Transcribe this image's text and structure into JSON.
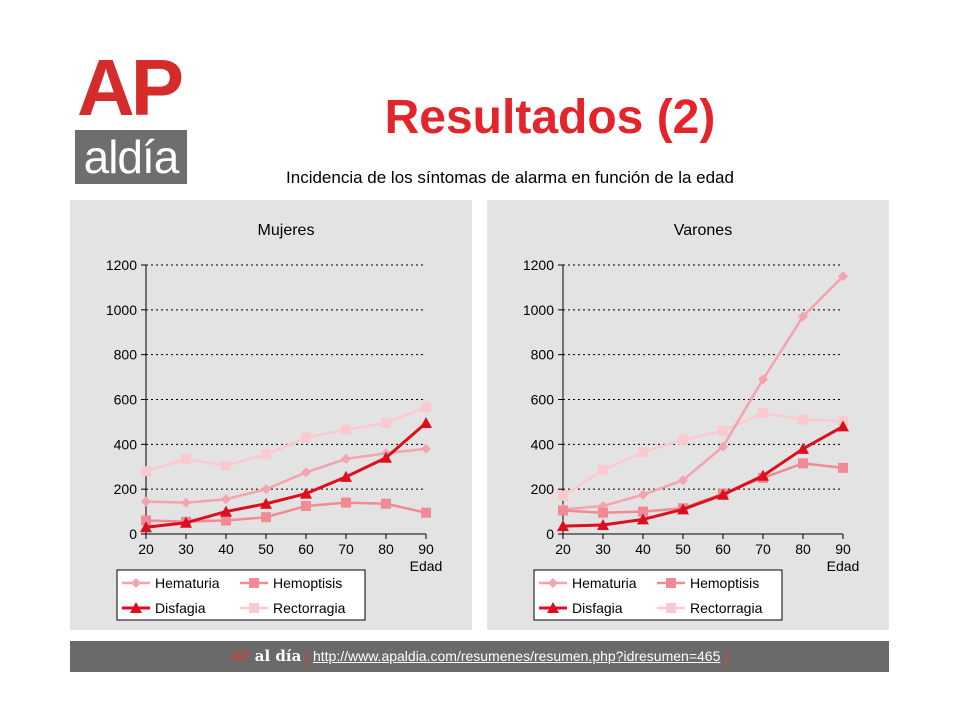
{
  "header": {
    "title": "Resultados (2)",
    "subtitle": "Incidencia de los síntomas de alarma en función de la edad"
  },
  "logo": {
    "top": "AP",
    "bottom": "aldía"
  },
  "footer": {
    "brand_ap": "AP",
    "brand_aldia": "al día",
    "bracket_open": "[",
    "url": "http://www.apaldia.com/resumenes/resumen.php?idresumen=465",
    "bracket_close": "]"
  },
  "colors": {
    "Hematuria": "#f4a3b0",
    "Hemoptisis": "#f08a95",
    "Disfagia": "#dd0f1f",
    "Rectorragia": "#fbc9cf",
    "title": "#e3242b"
  },
  "chart_data": [
    {
      "type": "line",
      "title": "Mujeres",
      "xlabel": "Edad",
      "ylabel": "",
      "x": [
        20,
        30,
        40,
        50,
        60,
        70,
        80,
        90
      ],
      "ylim": [
        0,
        1200
      ],
      "yticks": [
        0,
        200,
        400,
        600,
        800,
        1000,
        1200
      ],
      "grid": "horizontal dotted",
      "legend": "bottom",
      "series": [
        {
          "name": "Hematuria",
          "marker": "diamond",
          "values": [
            145,
            140,
            155,
            200,
            275,
            335,
            360,
            380
          ]
        },
        {
          "name": "Hemoptisis",
          "marker": "square",
          "values": [
            60,
            55,
            60,
            75,
            125,
            140,
            135,
            95
          ]
        },
        {
          "name": "Disfagia",
          "marker": "triangle",
          "values": [
            30,
            50,
            100,
            135,
            180,
            255,
            340,
            495
          ]
        },
        {
          "name": "Rectorragia",
          "marker": "square",
          "values": [
            280,
            335,
            305,
            355,
            430,
            465,
            495,
            565
          ]
        }
      ]
    },
    {
      "type": "line",
      "title": "Varones",
      "xlabel": "Edad",
      "ylabel": "",
      "x": [
        20,
        30,
        40,
        50,
        60,
        70,
        80,
        90
      ],
      "ylim": [
        0,
        1200
      ],
      "yticks": [
        0,
        200,
        400,
        600,
        800,
        1000,
        1200
      ],
      "grid": "horizontal dotted",
      "legend": "bottom",
      "series": [
        {
          "name": "Hematuria",
          "marker": "diamond",
          "values": [
            110,
            125,
            175,
            240,
            390,
            690,
            970,
            1150
          ]
        },
        {
          "name": "Hemoptisis",
          "marker": "square",
          "values": [
            105,
            95,
            100,
            115,
            180,
            250,
            315,
            295
          ]
        },
        {
          "name": "Disfagia",
          "marker": "triangle",
          "values": [
            35,
            40,
            65,
            110,
            175,
            260,
            380,
            480
          ]
        },
        {
          "name": "Rectorragia",
          "marker": "square",
          "values": [
            170,
            285,
            365,
            420,
            460,
            540,
            510,
            505
          ]
        }
      ]
    }
  ]
}
